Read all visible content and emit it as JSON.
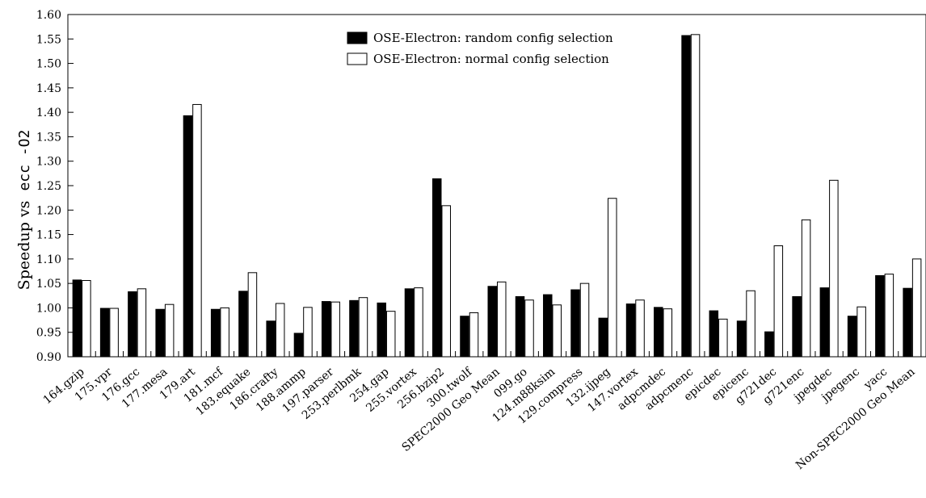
{
  "chart_data": {
    "type": "bar",
    "ylabel_text": "Speedup vs",
    "ylabel_code": "ecc -O2",
    "ylim": [
      0.9,
      1.6
    ],
    "yticks": [
      "0.90",
      "0.95",
      "1.00",
      "1.05",
      "1.10",
      "1.15",
      "1.20",
      "1.25",
      "1.30",
      "1.35",
      "1.40",
      "1.45",
      "1.50",
      "1.55",
      "1.60"
    ],
    "grid": false,
    "legend_position": "top-center",
    "categories": [
      "164.gzip",
      "175.vpr",
      "176.gcc",
      "177.mesa",
      "179.art",
      "181.mcf",
      "183.equake",
      "186.crafty",
      "188.ammp",
      "197.parser",
      "253.perlbmk",
      "254.gap",
      "255.vortex",
      "256.bzip2",
      "300.twolf",
      "SPEC2000 Geo Mean",
      "099.go",
      "124.m88ksim",
      "129.compress",
      "132.ijpeg",
      "147.vortex",
      "adpcmdec",
      "adpcmenc",
      "epicdec",
      "epicenc",
      "g721dec",
      "g721enc",
      "jpegdec",
      "jpegenc",
      "yacc",
      "Non-SPEC2000 Geo Mean"
    ],
    "series": [
      {
        "name": "OSE-Electron: random config selection",
        "color": "#000000",
        "values": [
          1.057,
          0.999,
          1.033,
          0.997,
          1.393,
          0.997,
          1.034,
          0.973,
          0.948,
          1.013,
          1.015,
          1.01,
          1.039,
          1.264,
          0.983,
          1.044,
          1.023,
          1.027,
          1.037,
          0.979,
          1.008,
          1.001,
          1.557,
          0.994,
          0.973,
          0.951,
          1.023,
          1.041,
          0.983,
          1.066,
          1.04
        ]
      },
      {
        "name": "OSE-Electron: normal config selection",
        "color": "#ffffff",
        "values": [
          1.056,
          0.999,
          1.039,
          1.007,
          1.416,
          1.0,
          1.072,
          1.009,
          1.001,
          1.012,
          1.021,
          0.993,
          1.041,
          1.209,
          0.99,
          1.053,
          1.016,
          1.006,
          1.05,
          1.224,
          1.016,
          0.998,
          1.559,
          0.977,
          1.035,
          1.127,
          1.18,
          1.261,
          1.002,
          1.069,
          1.1
        ]
      }
    ]
  }
}
